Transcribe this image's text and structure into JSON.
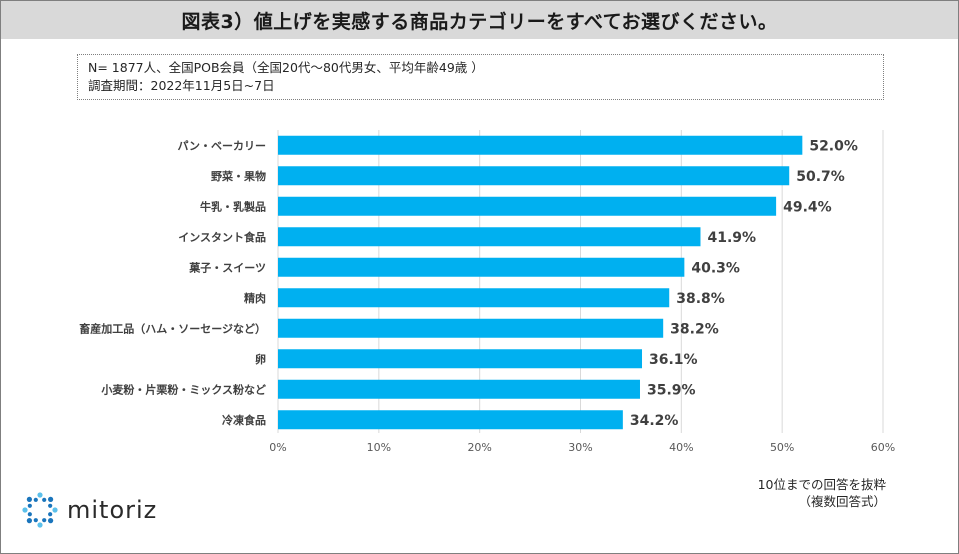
{
  "title": "図表3）値上げを実感する商品カテゴリーをすべてお選びください。",
  "note": {
    "line1": "N= 1877人、全国POB会員（全国20代～80代男女、平均年齢49歳 ）",
    "line2": "調査期間：2022年11月5日~7日"
  },
  "footnote": {
    "line1": "10位までの回答を抜粋",
    "line2": "（複数回答式）"
  },
  "brand": {
    "name": "mitoriz",
    "icon": "sparkle-ring-logo-icon"
  },
  "colors": {
    "bar": "#00b0f0",
    "grid": "#d9d9d9",
    "title_bg": "#d9d9d9",
    "label_text": "#404040",
    "logo_blue": "#1a75bc",
    "logo_light": "#5bc0eb"
  },
  "chart_data": {
    "type": "bar",
    "orientation": "horizontal",
    "categories": [
      "パン・ベーカリー",
      "野菜・果物",
      "牛乳・乳製品",
      "インスタント食品",
      "菓子・スイーツ",
      "精肉",
      "畜産加工品（ハム・ソーセージなど）",
      "卵",
      "小麦粉・片栗粉・ミックス粉など",
      "冷凍食品"
    ],
    "values": [
      52.0,
      50.7,
      49.4,
      41.9,
      40.3,
      38.8,
      38.2,
      36.1,
      35.9,
      34.2
    ],
    "value_labels": [
      "52.0%",
      "50.7%",
      "49.4%",
      "41.9%",
      "40.3%",
      "38.8%",
      "38.2%",
      "36.1%",
      "35.9%",
      "34.2%"
    ],
    "xlim": [
      0,
      60
    ],
    "xticks": [
      0,
      10,
      20,
      30,
      40,
      50,
      60
    ],
    "xtick_labels": [
      "0%",
      "10%",
      "20%",
      "30%",
      "40%",
      "50%",
      "60%"
    ],
    "grid": true,
    "legend": "none"
  }
}
